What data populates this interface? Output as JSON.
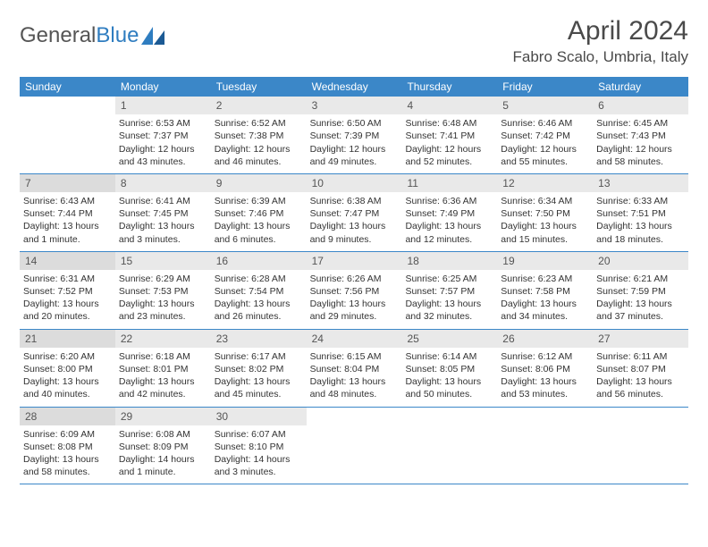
{
  "brand": {
    "part1": "General",
    "part2": "Blue"
  },
  "title": "April 2024",
  "location": "Fabro Scalo, Umbria, Italy",
  "colors": {
    "header_bg": "#3b87c8",
    "header_text": "#ffffff",
    "daynum_bg": "#e9e9e9",
    "daynum_bg_shaded": "#dcdcdc",
    "week_border": "#3b87c8",
    "text": "#333333"
  },
  "weekdays": [
    "Sunday",
    "Monday",
    "Tuesday",
    "Wednesday",
    "Thursday",
    "Friday",
    "Saturday"
  ],
  "weeks": [
    [
      {
        "num": "",
        "lines": [
          "",
          "",
          "",
          ""
        ],
        "empty": true
      },
      {
        "num": "1",
        "lines": [
          "Sunrise: 6:53 AM",
          "Sunset: 7:37 PM",
          "Daylight: 12 hours",
          "and 43 minutes."
        ]
      },
      {
        "num": "2",
        "lines": [
          "Sunrise: 6:52 AM",
          "Sunset: 7:38 PM",
          "Daylight: 12 hours",
          "and 46 minutes."
        ]
      },
      {
        "num": "3",
        "lines": [
          "Sunrise: 6:50 AM",
          "Sunset: 7:39 PM",
          "Daylight: 12 hours",
          "and 49 minutes."
        ]
      },
      {
        "num": "4",
        "lines": [
          "Sunrise: 6:48 AM",
          "Sunset: 7:41 PM",
          "Daylight: 12 hours",
          "and 52 minutes."
        ]
      },
      {
        "num": "5",
        "lines": [
          "Sunrise: 6:46 AM",
          "Sunset: 7:42 PM",
          "Daylight: 12 hours",
          "and 55 minutes."
        ]
      },
      {
        "num": "6",
        "lines": [
          "Sunrise: 6:45 AM",
          "Sunset: 7:43 PM",
          "Daylight: 12 hours",
          "and 58 minutes."
        ]
      }
    ],
    [
      {
        "num": "7",
        "lines": [
          "Sunrise: 6:43 AM",
          "Sunset: 7:44 PM",
          "Daylight: 13 hours",
          "and 1 minute."
        ],
        "shaded": true
      },
      {
        "num": "8",
        "lines": [
          "Sunrise: 6:41 AM",
          "Sunset: 7:45 PM",
          "Daylight: 13 hours",
          "and 3 minutes."
        ]
      },
      {
        "num": "9",
        "lines": [
          "Sunrise: 6:39 AM",
          "Sunset: 7:46 PM",
          "Daylight: 13 hours",
          "and 6 minutes."
        ]
      },
      {
        "num": "10",
        "lines": [
          "Sunrise: 6:38 AM",
          "Sunset: 7:47 PM",
          "Daylight: 13 hours",
          "and 9 minutes."
        ]
      },
      {
        "num": "11",
        "lines": [
          "Sunrise: 6:36 AM",
          "Sunset: 7:49 PM",
          "Daylight: 13 hours",
          "and 12 minutes."
        ]
      },
      {
        "num": "12",
        "lines": [
          "Sunrise: 6:34 AM",
          "Sunset: 7:50 PM",
          "Daylight: 13 hours",
          "and 15 minutes."
        ]
      },
      {
        "num": "13",
        "lines": [
          "Sunrise: 6:33 AM",
          "Sunset: 7:51 PM",
          "Daylight: 13 hours",
          "and 18 minutes."
        ]
      }
    ],
    [
      {
        "num": "14",
        "lines": [
          "Sunrise: 6:31 AM",
          "Sunset: 7:52 PM",
          "Daylight: 13 hours",
          "and 20 minutes."
        ],
        "shaded": true
      },
      {
        "num": "15",
        "lines": [
          "Sunrise: 6:29 AM",
          "Sunset: 7:53 PM",
          "Daylight: 13 hours",
          "and 23 minutes."
        ]
      },
      {
        "num": "16",
        "lines": [
          "Sunrise: 6:28 AM",
          "Sunset: 7:54 PM",
          "Daylight: 13 hours",
          "and 26 minutes."
        ]
      },
      {
        "num": "17",
        "lines": [
          "Sunrise: 6:26 AM",
          "Sunset: 7:56 PM",
          "Daylight: 13 hours",
          "and 29 minutes."
        ]
      },
      {
        "num": "18",
        "lines": [
          "Sunrise: 6:25 AM",
          "Sunset: 7:57 PM",
          "Daylight: 13 hours",
          "and 32 minutes."
        ]
      },
      {
        "num": "19",
        "lines": [
          "Sunrise: 6:23 AM",
          "Sunset: 7:58 PM",
          "Daylight: 13 hours",
          "and 34 minutes."
        ]
      },
      {
        "num": "20",
        "lines": [
          "Sunrise: 6:21 AM",
          "Sunset: 7:59 PM",
          "Daylight: 13 hours",
          "and 37 minutes."
        ]
      }
    ],
    [
      {
        "num": "21",
        "lines": [
          "Sunrise: 6:20 AM",
          "Sunset: 8:00 PM",
          "Daylight: 13 hours",
          "and 40 minutes."
        ],
        "shaded": true
      },
      {
        "num": "22",
        "lines": [
          "Sunrise: 6:18 AM",
          "Sunset: 8:01 PM",
          "Daylight: 13 hours",
          "and 42 minutes."
        ]
      },
      {
        "num": "23",
        "lines": [
          "Sunrise: 6:17 AM",
          "Sunset: 8:02 PM",
          "Daylight: 13 hours",
          "and 45 minutes."
        ]
      },
      {
        "num": "24",
        "lines": [
          "Sunrise: 6:15 AM",
          "Sunset: 8:04 PM",
          "Daylight: 13 hours",
          "and 48 minutes."
        ]
      },
      {
        "num": "25",
        "lines": [
          "Sunrise: 6:14 AM",
          "Sunset: 8:05 PM",
          "Daylight: 13 hours",
          "and 50 minutes."
        ]
      },
      {
        "num": "26",
        "lines": [
          "Sunrise: 6:12 AM",
          "Sunset: 8:06 PM",
          "Daylight: 13 hours",
          "and 53 minutes."
        ]
      },
      {
        "num": "27",
        "lines": [
          "Sunrise: 6:11 AM",
          "Sunset: 8:07 PM",
          "Daylight: 13 hours",
          "and 56 minutes."
        ]
      }
    ],
    [
      {
        "num": "28",
        "lines": [
          "Sunrise: 6:09 AM",
          "Sunset: 8:08 PM",
          "Daylight: 13 hours",
          "and 58 minutes."
        ],
        "shaded": true
      },
      {
        "num": "29",
        "lines": [
          "Sunrise: 6:08 AM",
          "Sunset: 8:09 PM",
          "Daylight: 14 hours",
          "and 1 minute."
        ]
      },
      {
        "num": "30",
        "lines": [
          "Sunrise: 6:07 AM",
          "Sunset: 8:10 PM",
          "Daylight: 14 hours",
          "and 3 minutes."
        ]
      },
      {
        "num": "",
        "lines": [
          "",
          "",
          "",
          ""
        ],
        "empty": true
      },
      {
        "num": "",
        "lines": [
          "",
          "",
          "",
          ""
        ],
        "empty": true
      },
      {
        "num": "",
        "lines": [
          "",
          "",
          "",
          ""
        ],
        "empty": true
      },
      {
        "num": "",
        "lines": [
          "",
          "",
          "",
          ""
        ],
        "empty": true
      }
    ]
  ]
}
